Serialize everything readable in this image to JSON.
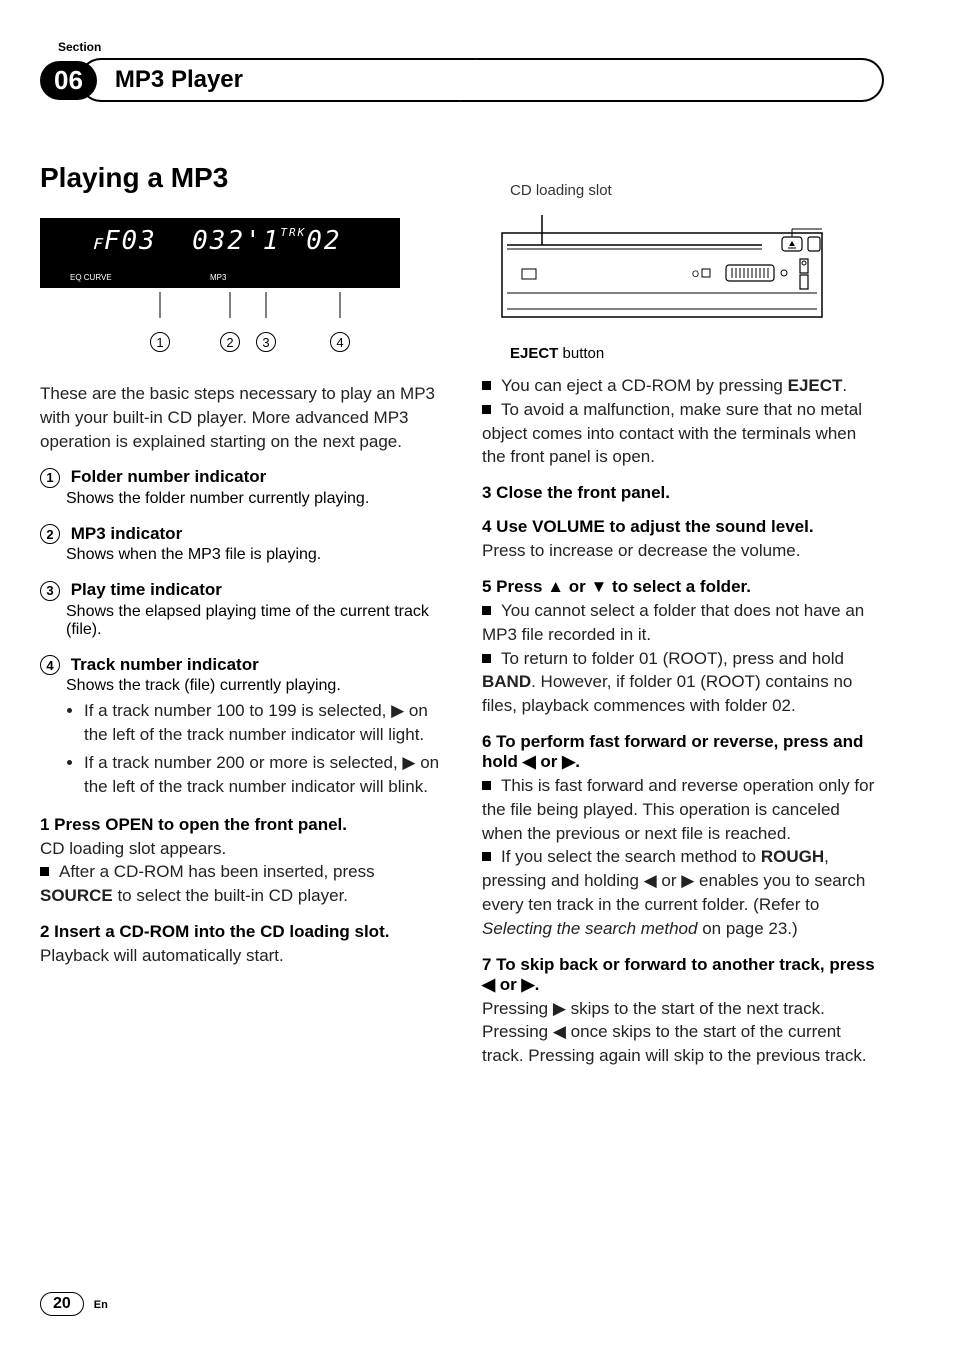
{
  "header": {
    "section_label": "Section",
    "section_num": "06",
    "chapter": "MP3 Player"
  },
  "title": "Playing a MP3",
  "lcd": {
    "main": "F03  032'1 02",
    "eq": "EQ CURVE",
    "mp3": "MP3",
    "trk": "TRK"
  },
  "callouts": [
    "1",
    "2",
    "3",
    "4"
  ],
  "intro": "These are the basic steps necessary to play an MP3 with your built-in CD player. More advanced MP3 operation is explained starting on the next page.",
  "defs": [
    {
      "num": "1",
      "head": "Folder number indicator",
      "body": "Shows the folder number currently playing."
    },
    {
      "num": "2",
      "head": "MP3 indicator",
      "body": "Shows when the MP3 file is playing."
    },
    {
      "num": "3",
      "head": "Play time indicator",
      "body": "Shows the elapsed playing time of the current track (file)."
    },
    {
      "num": "4",
      "head": "Track number indicator",
      "body": "Shows the track (file) currently playing.",
      "bullets": [
        "If a track number 100 to 199 is selected, ▶ on the left of the track number indicator will light.",
        "If a track number 200 or more is selected, ▶ on the left of the track number indicator will blink."
      ]
    }
  ],
  "steps_left": [
    {
      "head": "1    Press OPEN to open the front panel.",
      "lines": [
        "CD loading slot appears."
      ],
      "sq": [
        "After a CD-ROM has been inserted, press <b>SOURCE</b> to select the built-in CD player."
      ]
    },
    {
      "head": "2    Insert a CD-ROM into the CD loading slot.",
      "lines": [
        "Playback will automatically start."
      ]
    }
  ],
  "right": {
    "slot_label": "CD loading slot",
    "eject_label_bold": "EJECT",
    "eject_label_rest": " button",
    "sq_after_device": [
      "You can eject a CD-ROM by pressing <b>EJECT</b>.",
      "To avoid a malfunction, make sure that no metal object comes into contact with the terminals when the front panel is open."
    ],
    "steps": [
      {
        "head": "3    Close the front panel."
      },
      {
        "head": "4    Use VOLUME to adjust the sound level.",
        "lines": [
          "Press to increase or decrease the volume."
        ]
      },
      {
        "head": "5    Press ▲ or ▼ to select a folder.",
        "sq": [
          "You cannot select a folder that does not have an MP3 file recorded in it.",
          "To return to folder 01 (ROOT), press and hold <b>BAND</b>. However, if folder 01 (ROOT) contains no files, playback commences with folder 02."
        ]
      },
      {
        "head": "6    To perform fast forward or reverse, press and hold ◀ or ▶.",
        "sq": [
          "This is fast forward and reverse operation only for the file being played. This operation is canceled when the previous or next file is reached.",
          "If you select the search method to <b>ROUGH</b>, pressing and holding ◀ or ▶ enables you to search every ten track in the current folder. (Refer to <i>Selecting the search method</i> on page 23.)"
        ]
      },
      {
        "head": "7    To skip back or forward to another track, press ◀ or ▶.",
        "lines": [
          "Pressing ▶ skips to the start of the next track. Pressing ◀ once skips to the start of the current track. Pressing again will skip to the previous track."
        ]
      }
    ]
  },
  "footer": {
    "page": "20",
    "lang": "En"
  }
}
